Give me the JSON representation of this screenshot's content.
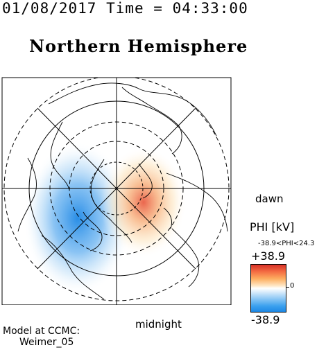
{
  "timestamp": "01/08/2017 Time = 04:33:00",
  "title": "Northern Hemisphere",
  "labels": {
    "dawn": "dawn",
    "midnight": "midnight"
  },
  "colorbar": {
    "quantity": "PHI [kV]",
    "range_text": "-38.9<PHI<24.3",
    "max_label": "+38.9",
    "min_label": "-38.9",
    "zero_label": "0",
    "max_color": "#d73027",
    "min_color": "#1e88e5"
  },
  "model": {
    "line1": "Model at CCMC:",
    "line2": "Weimer_05"
  }
}
